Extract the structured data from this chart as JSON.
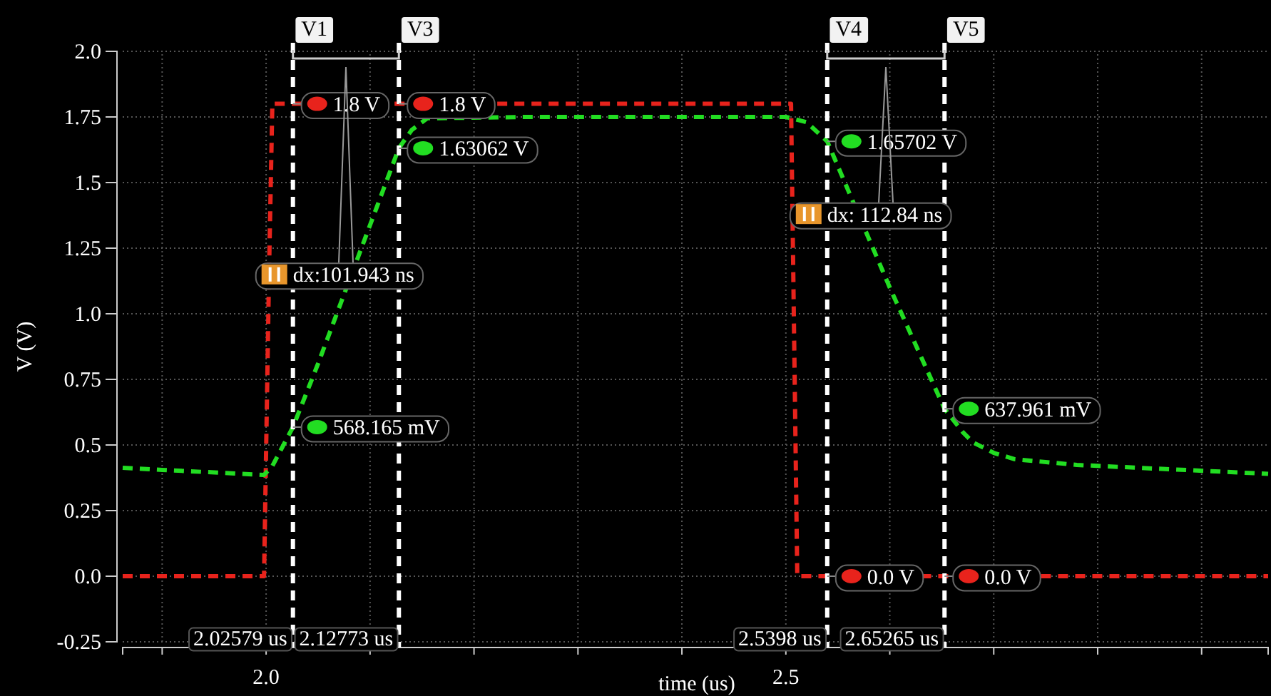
{
  "chart_data": {
    "type": "line",
    "xlabel": "time (us)",
    "ylabel": "V (V)",
    "xlim": [
      1.862,
      2.964
    ],
    "ylim": [
      -0.25,
      2.0
    ],
    "xticks": [
      {
        "value": 1.9,
        "label": null
      },
      {
        "value": 2.0,
        "label": "2.0"
      },
      {
        "value": 2.1,
        "label": null
      },
      {
        "value": 2.2,
        "label": null
      },
      {
        "value": 2.3,
        "label": null
      },
      {
        "value": 2.4,
        "label": null
      },
      {
        "value": 2.5,
        "label": "2.5"
      },
      {
        "value": 2.6,
        "label": null
      },
      {
        "value": 2.7,
        "label": null
      },
      {
        "value": 2.8,
        "label": null
      },
      {
        "value": 2.9,
        "label": null
      }
    ],
    "yticks": [
      -0.25,
      {
        "value": 0,
        "label": "0.0"
      },
      0.25,
      0.5,
      0.75,
      {
        "value": 1,
        "label": "1.0"
      },
      1.25,
      1.5,
      1.75,
      {
        "value": 2,
        "label": "2.0"
      }
    ],
    "grid": true,
    "line_style": "dashed",
    "marker": "none",
    "series": [
      {
        "color": "#e8231c",
        "x": [
          1.862,
          1.998,
          2.003,
          2.006,
          2.505,
          2.507,
          2.511,
          2.964
        ],
        "values": [
          0,
          0,
          1.2,
          1.8,
          1.8,
          1.2,
          0,
          0
        ]
      },
      {
        "color": "#22dd22",
        "x": [
          1.862,
          1.9,
          1.998,
          2.006,
          2.02579,
          2.05,
          2.12773,
          2.14,
          2.155,
          2.25,
          2.5,
          2.52,
          2.5398,
          2.6,
          2.65265,
          2.67,
          2.68,
          2.7,
          2.72,
          2.78,
          2.964
        ],
        "values": [
          0.413,
          0.405,
          0.386,
          0.42,
          0.568,
          0.81,
          1.631,
          1.7,
          1.745,
          1.75,
          1.75,
          1.73,
          1.657,
          1.1,
          0.638,
          0.55,
          0.51,
          0.47,
          0.446,
          0.424,
          0.39
        ]
      }
    ],
    "ref_lines": [
      {
        "axis": "x",
        "value": 2.02579,
        "label": "V1",
        "color": "#ffffff",
        "line_style": "dashed"
      },
      {
        "axis": "x",
        "value": 2.12773,
        "label": "V3",
        "color": "#ffffff",
        "line_style": "dashed"
      },
      {
        "axis": "x",
        "value": 2.5398,
        "label": "V4",
        "color": "#ffffff",
        "line_style": "dashed"
      },
      {
        "axis": "x",
        "value": 2.65265,
        "label": "V5",
        "color": "#ffffff",
        "line_style": "dashed"
      }
    ],
    "annotations": [
      {
        "text": "1.8 V",
        "x": 2.02579,
        "y": 1.8
      },
      {
        "text": "1.8 V",
        "x": 2.12773,
        "y": 1.8
      },
      {
        "text": "1.63062 V",
        "x": 2.12773,
        "y": 1.63062
      },
      {
        "text": "568.165 mV",
        "x": 2.02579,
        "y": 0.568165
      },
      {
        "text": "1.65702 V",
        "x": 2.5398,
        "y": 1.65702
      },
      {
        "text": "637.961 mV",
        "x": 2.65265,
        "y": 0.637961
      },
      {
        "text": "0.0 V",
        "x": 2.5398,
        "y": 0
      },
      {
        "text": "0.0 V",
        "x": 2.65265,
        "y": 0
      },
      {
        "text": "dx:101.943 ns",
        "x": 2.02579,
        "y": 1.15
      },
      {
        "text": "dx: 112.84 ns",
        "x": 2.5398,
        "y": 1.38
      },
      {
        "text": "2.02579 us",
        "x": 2.02579
      },
      {
        "text": "2.12773 us",
        "x": 2.12773
      },
      {
        "text": "2.5398 us",
        "x": 2.5398
      },
      {
        "text": "2.65265 us",
        "x": 2.65265
      }
    ]
  }
}
